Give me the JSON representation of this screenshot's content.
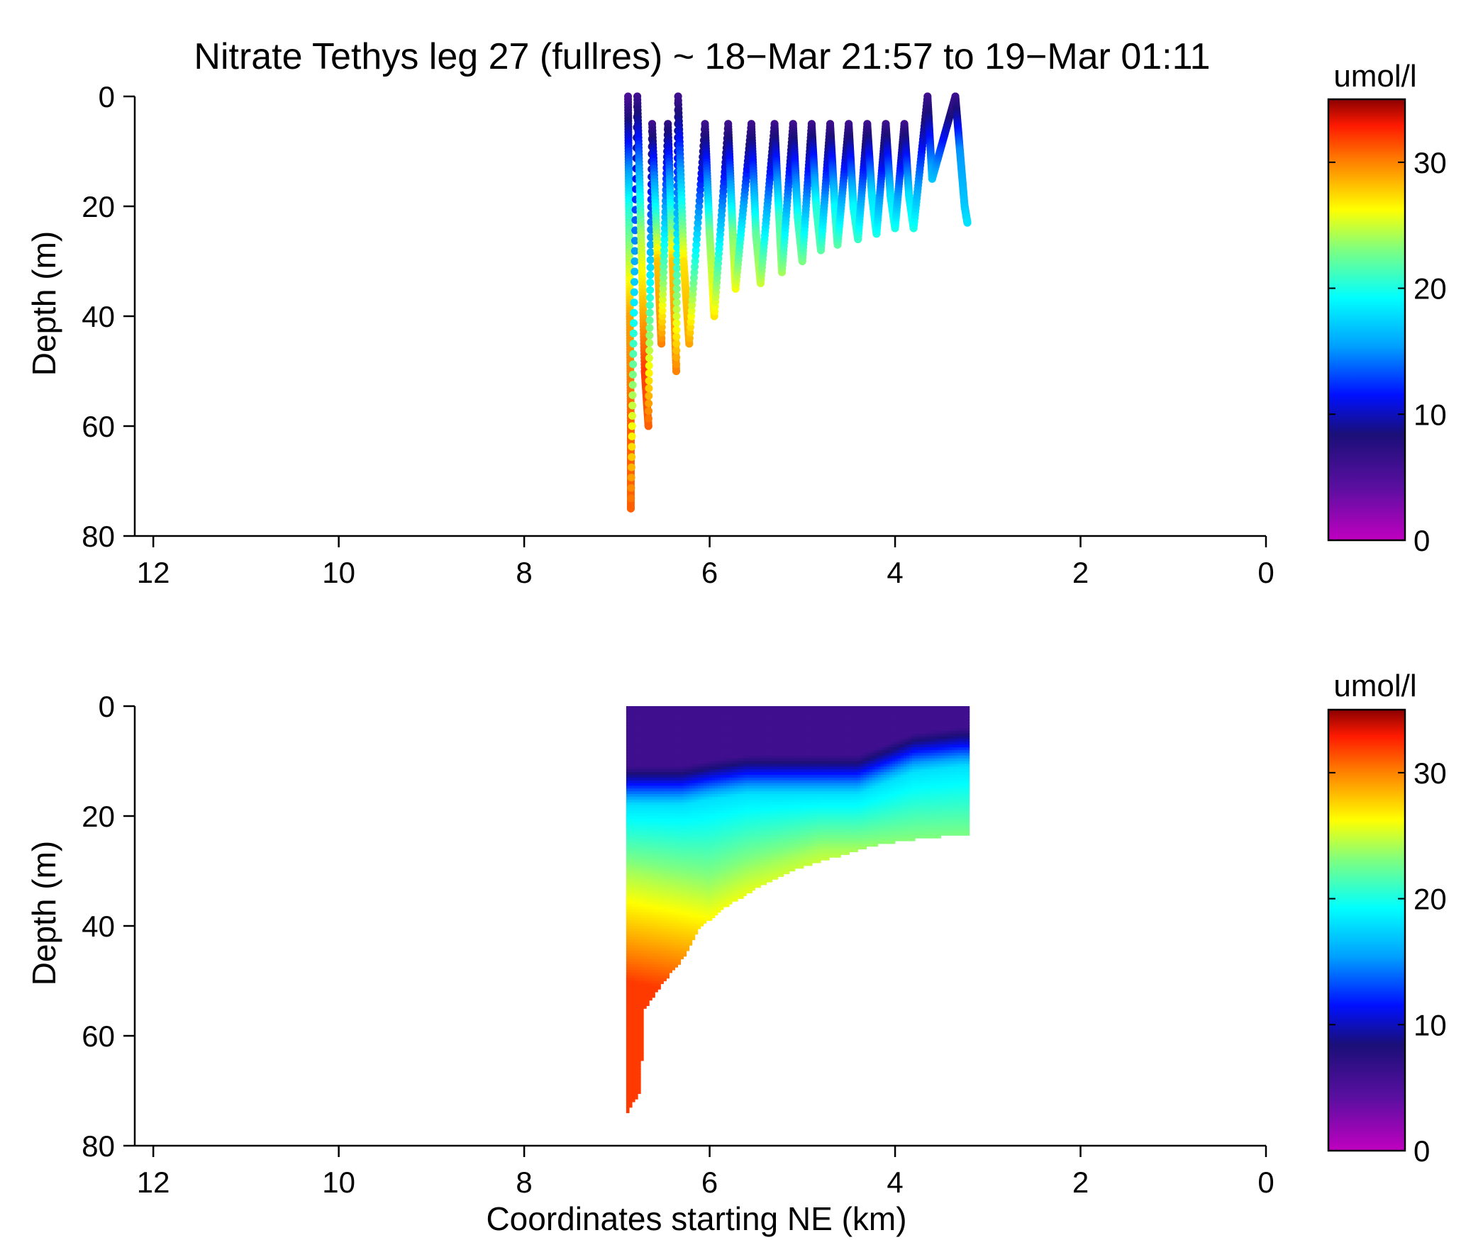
{
  "chart_data": [
    {
      "type": "scatter",
      "title": "Nitrate Tethys leg 27 (fullres) ~ 18−Mar 21:57 to 19−Mar 01:11",
      "xlabel": "",
      "ylabel": "Depth (m)",
      "xlim": [
        12.2,
        0
      ],
      "ylim": [
        0,
        80
      ],
      "x_ticks": [
        "12",
        "10",
        "8",
        "6",
        "4",
        "2",
        "0"
      ],
      "y_ticks": [
        "0",
        "20",
        "40",
        "60",
        "80"
      ],
      "x_reversed": true,
      "y_reversed": true,
      "grid": false,
      "colorbar": {
        "label": "umol/l",
        "range": [
          0,
          35
        ],
        "ticks": [
          "0",
          "10",
          "20",
          "30"
        ],
        "colormap": "jet"
      },
      "series": [
        {
          "points": [
            [
              6.88,
              0,
              5
            ],
            [
              6.87,
              20,
              20
            ],
            [
              6.86,
              40,
              29
            ],
            [
              6.85,
              60,
              31
            ],
            [
              6.85,
              75,
              31
            ],
            [
              6.78,
              0,
              6
            ],
            [
              6.74,
              25,
              24
            ],
            [
              6.7,
              50,
              32
            ],
            [
              6.66,
              60,
              31
            ],
            [
              6.62,
              5,
              6
            ],
            [
              6.56,
              30,
              28
            ],
            [
              6.52,
              45,
              30
            ],
            [
              6.45,
              5,
              7
            ],
            [
              6.4,
              30,
              28
            ],
            [
              6.36,
              50,
              30
            ],
            [
              6.34,
              0,
              6
            ],
            [
              6.28,
              30,
              27
            ],
            [
              6.22,
              45,
              29
            ],
            [
              6.05,
              5,
              6
            ],
            [
              6.0,
              25,
              23
            ],
            [
              5.95,
              40,
              27
            ],
            [
              5.8,
              5,
              6
            ],
            [
              5.75,
              25,
              23
            ],
            [
              5.72,
              35,
              26
            ],
            [
              5.55,
              5,
              6
            ],
            [
              5.5,
              25,
              22
            ],
            [
              5.45,
              34,
              25
            ],
            [
              5.3,
              5,
              6
            ],
            [
              5.25,
              22,
              21
            ],
            [
              5.22,
              32,
              24
            ],
            [
              5.1,
              5,
              6
            ],
            [
              5.05,
              22,
              20
            ],
            [
              5.0,
              30,
              23
            ],
            [
              4.9,
              5,
              6
            ],
            [
              4.85,
              20,
              20
            ],
            [
              4.8,
              28,
              22
            ],
            [
              4.7,
              5,
              6
            ],
            [
              4.65,
              20,
              19
            ],
            [
              4.62,
              27,
              22
            ],
            [
              4.5,
              5,
              6
            ],
            [
              4.45,
              20,
              19
            ],
            [
              4.4,
              26,
              21
            ],
            [
              4.3,
              5,
              6
            ],
            [
              4.25,
              18,
              18
            ],
            [
              4.2,
              25,
              20
            ],
            [
              4.1,
              5,
              6
            ],
            [
              4.05,
              18,
              18
            ],
            [
              4.0,
              24,
              20
            ],
            [
              3.9,
              5,
              6
            ],
            [
              3.85,
              18,
              18
            ],
            [
              3.8,
              24,
              20
            ],
            [
              3.65,
              0,
              6
            ],
            [
              3.6,
              15,
              17
            ],
            [
              3.35,
              0,
              6
            ],
            [
              3.3,
              10,
              15
            ],
            [
              3.25,
              20,
              17
            ],
            [
              3.22,
              23,
              18
            ]
          ]
        }
      ]
    },
    {
      "type": "heatmap",
      "title": "",
      "xlabel": "Coordinates starting NE (km)",
      "ylabel": "Depth (m)",
      "xlim": [
        12.2,
        0
      ],
      "ylim": [
        0,
        80
      ],
      "x_ticks": [
        "12",
        "10",
        "8",
        "6",
        "4",
        "2",
        "0"
      ],
      "y_ticks": [
        "0",
        "20",
        "40",
        "60",
        "80"
      ],
      "x_reversed": true,
      "y_reversed": true,
      "grid": false,
      "colorbar": {
        "label": "umol/l",
        "range": [
          0,
          35
        ],
        "ticks": [
          "0",
          "10",
          "20",
          "30"
        ],
        "colormap": "jet"
      },
      "series": [
        {
          "bottom_depth_by_x": [
            [
              6.9,
              74
            ],
            [
              6.75,
              70
            ],
            [
              6.7,
              55
            ],
            [
              6.5,
              50
            ],
            [
              6.3,
              46
            ],
            [
              6.1,
              40
            ],
            [
              5.8,
              36
            ],
            [
              5.4,
              32
            ],
            [
              5.0,
              29
            ],
            [
              4.6,
              27
            ],
            [
              4.2,
              25
            ],
            [
              3.8,
              24
            ],
            [
              3.2,
              23
            ]
          ],
          "nitracline_depth_by_x": [
            [
              6.9,
              14
            ],
            [
              6.6,
              14
            ],
            [
              6.3,
              14
            ],
            [
              6.0,
              13
            ],
            [
              5.6,
              12
            ],
            [
              5.2,
              12
            ],
            [
              4.8,
              12
            ],
            [
              4.4,
              12
            ],
            [
              4.1,
              10
            ],
            [
              3.8,
              8
            ],
            [
              3.3,
              7
            ]
          ],
          "deep_transition_depth_by_x": [
            [
              6.9,
              30
            ],
            [
              6.6,
              31
            ],
            [
              6.3,
              32
            ],
            [
              6.0,
              33
            ],
            [
              5.6,
              30
            ],
            [
              5.2,
              28
            ],
            [
              4.8,
              26
            ]
          ]
        }
      ]
    }
  ]
}
